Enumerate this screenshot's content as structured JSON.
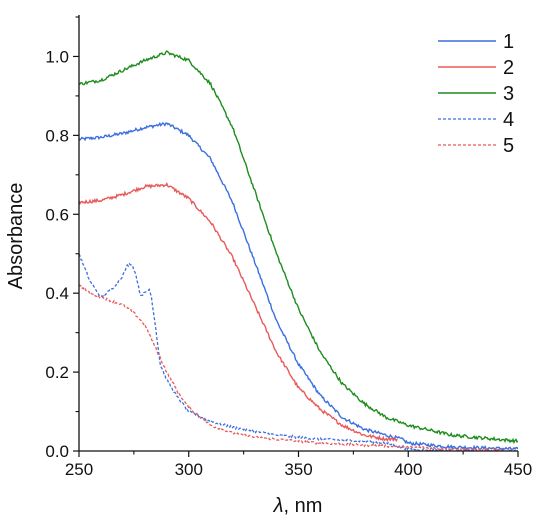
{
  "chart_data": {
    "type": "line",
    "xlabel_symbol": "λ",
    "xlabel_unit": ", nm",
    "ylabel": "Absorbance",
    "xlim": [
      250,
      450
    ],
    "ylim": [
      0.0,
      1.1
    ],
    "x_ticks": [
      250,
      300,
      350,
      400,
      450
    ],
    "x_tick_labels": [
      "250",
      "300",
      "350",
      "400",
      "450"
    ],
    "y_ticks": [
      0.0,
      0.2,
      0.4,
      0.6,
      0.8,
      1.0
    ],
    "y_tick_labels": [
      "0.0",
      "0.2",
      "0.4",
      "0.6",
      "0.8",
      "1.0"
    ],
    "grid": false,
    "legend_position": "top-right",
    "series": [
      {
        "name": "1",
        "color": "#3b6fe0",
        "style": "solid",
        "noise": 0.004,
        "x": [
          250,
          260,
          270,
          280,
          290,
          300,
          310,
          320,
          330,
          340,
          350,
          360,
          370,
          380,
          390,
          397,
          400,
          420,
          450
        ],
        "y": [
          0.79,
          0.795,
          0.805,
          0.82,
          0.83,
          0.8,
          0.74,
          0.63,
          0.48,
          0.33,
          0.22,
          0.14,
          0.085,
          0.055,
          0.04,
          0.03,
          0.02,
          0.01,
          0.005
        ]
      },
      {
        "name": "2",
        "color": "#e85a5a",
        "style": "solid",
        "noise": 0.004,
        "x": [
          250,
          260,
          270,
          280,
          290,
          300,
          310,
          320,
          330,
          340,
          350,
          360,
          370,
          380,
          390,
          395
        ],
        "y": [
          0.63,
          0.635,
          0.65,
          0.67,
          0.675,
          0.64,
          0.58,
          0.49,
          0.37,
          0.25,
          0.16,
          0.105,
          0.065,
          0.04,
          0.03,
          0.03
        ]
      },
      {
        "name": "3",
        "color": "#1e8c1e",
        "style": "solid",
        "noise": 0.004,
        "x": [
          250,
          260,
          270,
          280,
          290,
          300,
          310,
          320,
          330,
          340,
          350,
          360,
          370,
          380,
          390,
          400,
          420,
          450
        ],
        "y": [
          0.93,
          0.94,
          0.965,
          0.99,
          1.01,
          0.99,
          0.93,
          0.82,
          0.66,
          0.5,
          0.36,
          0.25,
          0.17,
          0.12,
          0.085,
          0.065,
          0.04,
          0.025
        ]
      },
      {
        "name": "4",
        "color": "#3b6fe0",
        "style": "dashed",
        "noise": 0.003,
        "x": [
          250,
          255,
          260,
          265,
          270,
          272,
          274,
          276,
          278,
          280,
          282,
          283,
          285,
          287,
          290,
          295,
          300,
          310,
          320,
          340,
          360,
          380,
          390,
          396,
          400,
          420,
          450
        ],
        "y": [
          0.5,
          0.43,
          0.39,
          0.41,
          0.445,
          0.47,
          0.475,
          0.445,
          0.395,
          0.4,
          0.41,
          0.39,
          0.31,
          0.22,
          0.18,
          0.135,
          0.1,
          0.075,
          0.06,
          0.04,
          0.03,
          0.025,
          0.02,
          0.01,
          0.005,
          0.0,
          0.0
        ]
      },
      {
        "name": "5",
        "color": "#e85a5a",
        "style": "dashed",
        "noise": 0.003,
        "x": [
          250,
          255,
          260,
          265,
          270,
          275,
          280,
          285,
          290,
          295,
          300,
          310,
          320,
          330,
          340,
          360,
          380,
          400,
          420,
          450
        ],
        "y": [
          0.42,
          0.4,
          0.39,
          0.38,
          0.37,
          0.35,
          0.32,
          0.26,
          0.2,
          0.15,
          0.11,
          0.065,
          0.045,
          0.035,
          0.03,
          0.02,
          0.015,
          0.01,
          0.005,
          0.0
        ]
      }
    ]
  }
}
